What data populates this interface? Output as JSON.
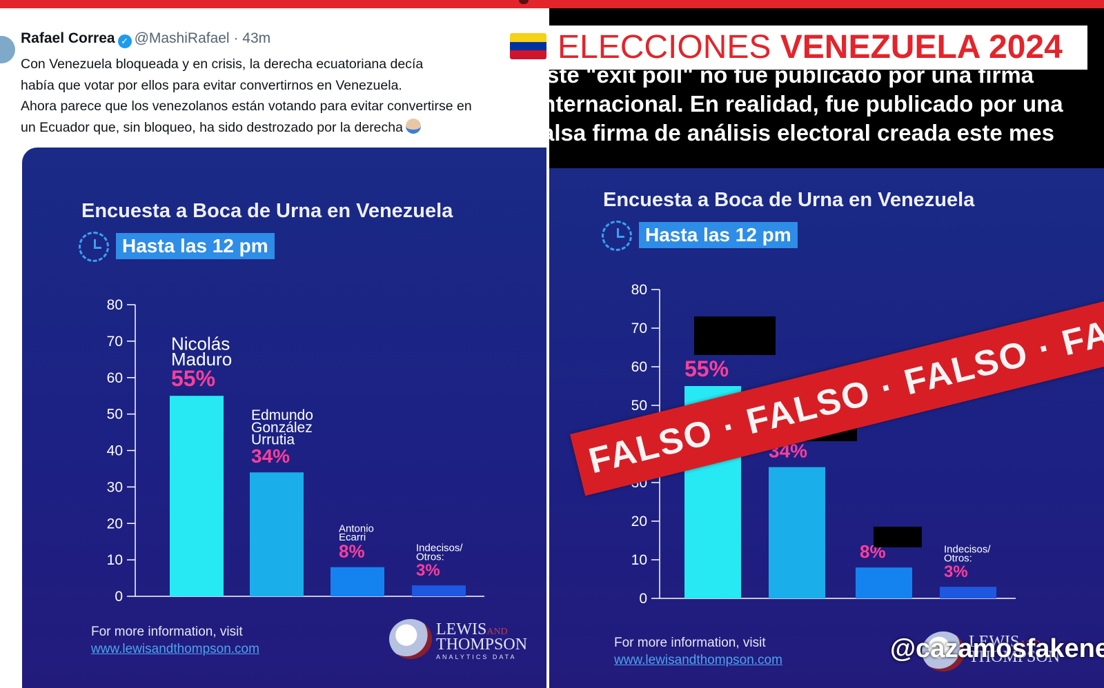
{
  "tweet": {
    "author": "Rafael Correa",
    "handle": "@MashiRafael",
    "separator": "·",
    "time": "43m",
    "lines": [
      "Con Venezuela bloqueada y en crisis, la derecha ecuatoriana decía",
      "había que votar por ellos para evitar convertirnos en Venezuela.",
      "Ahora parece que los venezolanos están votando para evitar convertirse en",
      "un Ecuador que, sin bloqueo, ha sido destrozado por la derecha"
    ],
    "emoji": "person-shrugging-icon"
  },
  "headline": {
    "prefix": "ELECCIONES ",
    "highlight": "VENEZUELA 2024",
    "flag_colors": [
      "#f7d117",
      "#0033a0",
      "#cf142b"
    ]
  },
  "fact_check_caption": [
    "Este \"exit poll\" no fue publicado por una firma",
    "internacional. En realidad, fue publicado por una",
    "falsa firma de análisis electoral creada este mes"
  ],
  "stamp": {
    "text": "FALSO · FALSO · FALSO · FALSO · FALSO · FALSO",
    "color": "#d81e25"
  },
  "watermark": "@cazamosfakenews",
  "card": {
    "title": "Encuesta a Boca de Urna en Venezuela",
    "subtitle": "Hasta las 12 pm",
    "footer": "For more information, visit",
    "link": "www.lewisandthompson.com",
    "logo": {
      "line1": "LEWIS",
      "line1_small": "AND",
      "line2": "THOMPSON",
      "line3": "ANALYTICS DATA"
    }
  },
  "chart_data": [
    {
      "type": "bar",
      "title": "Encuesta a Boca de Urna en Venezuela",
      "subtitle": "Hasta las 12 pm",
      "categories": [
        "Nicolás Maduro",
        "Edmundo González Urrutia",
        "Antonio Ecarri",
        "Indecisos/ Otros:"
      ],
      "category_lines": [
        [
          "Nicolás",
          "Maduro"
        ],
        [
          "Edmundo",
          "González",
          "Urrutia"
        ],
        [
          "Antonio",
          "Ecarri"
        ],
        [
          "Indecisos/",
          "Otros:"
        ]
      ],
      "values": [
        55,
        34,
        8,
        3
      ],
      "value_labels": [
        "55%",
        "34%",
        "8%",
        "3%"
      ],
      "bar_colors": [
        "#27e9f4",
        "#1aaeea",
        "#1583ef",
        "#1e57e0"
      ],
      "label_color": "#ff3e9a",
      "yticks": [
        0,
        10,
        20,
        30,
        40,
        50,
        60,
        70,
        80
      ],
      "ylim": [
        0,
        80
      ],
      "xlabel": "",
      "ylabel": ""
    },
    {
      "type": "bar",
      "title": "Encuesta a Boca de Urna en Venezuela",
      "subtitle": "Hasta las 12 pm",
      "categories": [
        "",
        "",
        "",
        "Indecisos/ Otros:"
      ],
      "category_lines": [
        [],
        [],
        [],
        [
          "Indecisos/",
          "Otros:"
        ]
      ],
      "values": [
        55,
        34,
        8,
        3
      ],
      "value_labels": [
        "55%",
        "34%",
        "8%",
        "3%"
      ],
      "bar_colors": [
        "#27e9f4",
        "#1aaeea",
        "#1583ef",
        "#1e57e0"
      ],
      "label_color": "#ff3e9a",
      "yticks": [
        0,
        10,
        20,
        30,
        40,
        50,
        60,
        70,
        80
      ],
      "ylim": [
        0,
        80
      ],
      "redacted_names": [
        true,
        true,
        true,
        false
      ],
      "xlabel": "",
      "ylabel": ""
    }
  ]
}
